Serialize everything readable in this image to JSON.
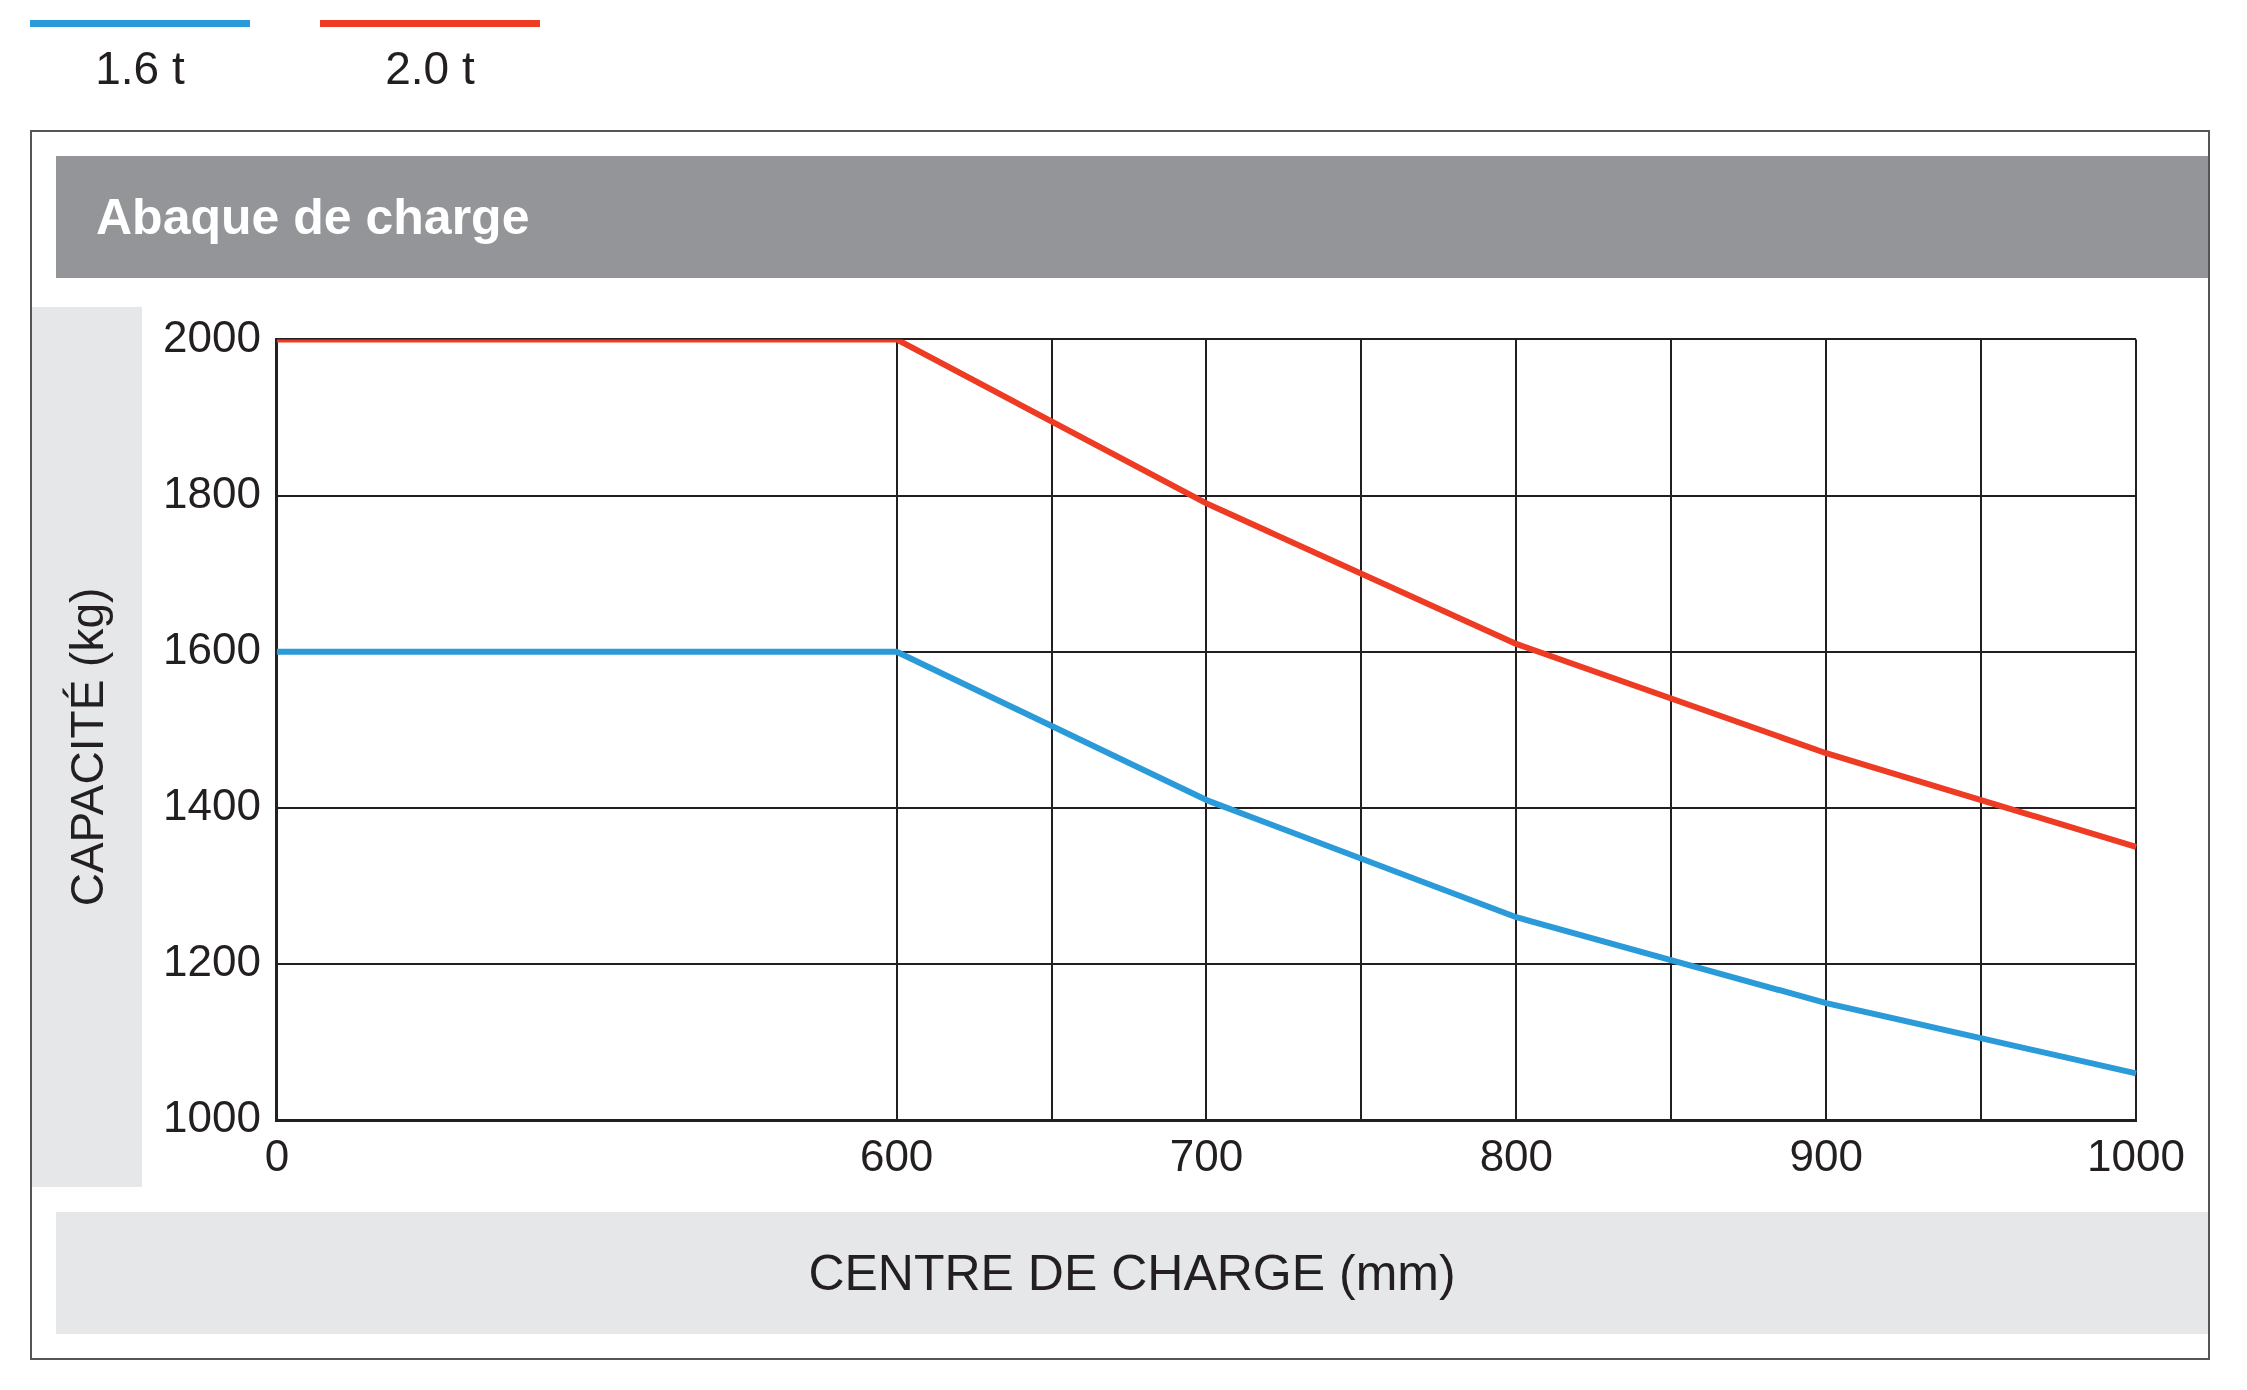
{
  "chart_data": {
    "type": "line",
    "title": "Abaque de charge",
    "xlabel": "CENTRE DE CHARGE (mm)",
    "ylabel": "CAPACITÉ (kg)",
    "categories": [
      "0",
      null,
      null,
      null,
      "600",
      null,
      "700",
      null,
      "800",
      null,
      "900",
      null,
      "1000"
    ],
    "series": [
      {
        "name": "1.6 t",
        "color": "#2b9ad8",
        "values": [
          1600,
          null,
          null,
          null,
          1600,
          null,
          1410,
          null,
          1260,
          null,
          1150,
          null,
          1060
        ]
      },
      {
        "name": "2.0 t",
        "color": "#ee3b24",
        "values": [
          2000,
          null,
          null,
          null,
          2000,
          null,
          1790,
          null,
          1610,
          null,
          1470,
          null,
          1350
        ]
      }
    ],
    "ylim": [
      1000,
      2000
    ],
    "yticks": [
      1000,
      1200,
      1400,
      1600,
      1800,
      2000
    ],
    "grid": true,
    "legend": "top left",
    "marker": "none",
    "line_style": "solid"
  }
}
